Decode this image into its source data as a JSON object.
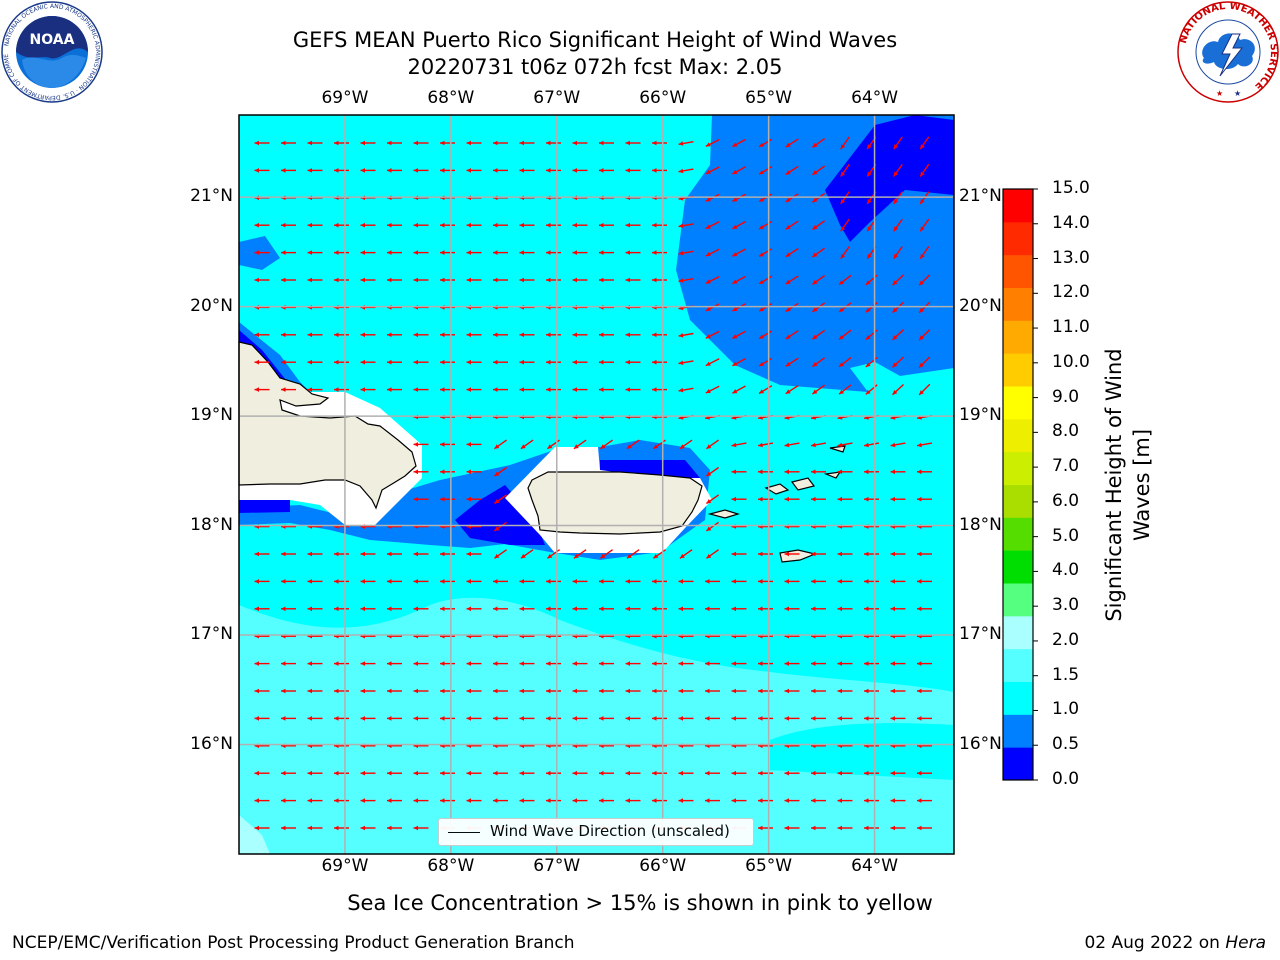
{
  "title": {
    "line1": "GEFS MEAN Puerto Rico Significant Height of Wind Waves",
    "line2": "20220731 t06z 072h fcst   Max: 2.05"
  },
  "logos": {
    "noaa": {
      "text": "NOAA",
      "ring_text": "NATIONAL OCEANIC AND ATMOSPHERIC ADMINISTRATION · U.S. DEPARTMENT OF COMMERCE"
    },
    "nws": {
      "ring_text": "NATIONAL WEATHER SERVICE"
    }
  },
  "map": {
    "lon_labels": [
      "69°W",
      "68°W",
      "67°W",
      "66°W",
      "65°W",
      "64°W"
    ],
    "lat_labels": [
      "21°N",
      "20°N",
      "19°N",
      "18°N",
      "17°N",
      "16°N"
    ],
    "lon_values": [
      -69,
      -68,
      -67,
      -66,
      -65,
      -64
    ],
    "lat_values": [
      21,
      20,
      19,
      18,
      17,
      16
    ],
    "extent": {
      "lon_min": -70,
      "lon_max": -63.25,
      "lat_min": 15,
      "lat_max": 21.75
    },
    "legend_label": "Wind Wave Direction (unscaled)",
    "colors": {
      "ocean_default": "#00ffff",
      "land": "#f0eedf",
      "arrow": "#ff0000",
      "grid": "#b0b0b0"
    }
  },
  "colorbar": {
    "title": "Significant Height of Wind Waves [m]",
    "title_lines": [
      "Significant Height of Wind",
      "Waves [m]"
    ],
    "ticks": [
      "0.0",
      "0.5",
      "1.0",
      "1.5",
      "2.0",
      "3.0",
      "4.0",
      "5.0",
      "6.0",
      "7.0",
      "8.0",
      "9.0",
      "10.0",
      "11.0",
      "12.0",
      "13.0",
      "14.0",
      "15.0"
    ],
    "colors": [
      "#0000ff",
      "#0080ff",
      "#00ffff",
      "#55ffff",
      "#aaffff",
      "#55ff7f",
      "#00dd00",
      "#55dd00",
      "#aadd00",
      "#ccee00",
      "#eeee00",
      "#ffff00",
      "#ffcc00",
      "#ffaa00",
      "#ff8000",
      "#ff5500",
      "#ff2a00",
      "#ff0000"
    ]
  },
  "footer": {
    "note": "Sea Ice Concentration > 15% is shown in pink to yellow",
    "left": "NCEP/EMC/Verification Post Processing Product Generation Branch",
    "right_date": "02 Aug 2022 on ",
    "right_host": "Hera"
  }
}
